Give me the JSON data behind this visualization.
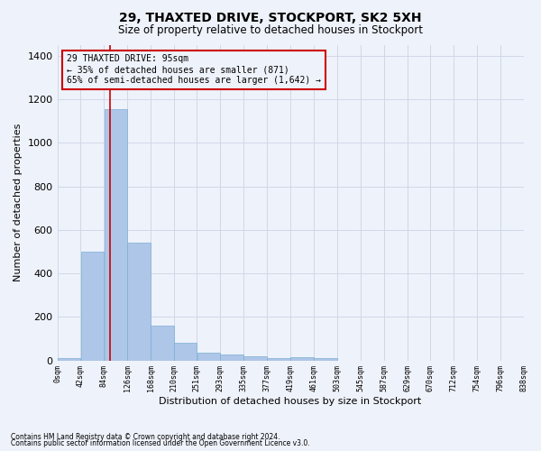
{
  "title1": "29, THAXTED DRIVE, STOCKPORT, SK2 5XH",
  "title2": "Size of property relative to detached houses in Stockport",
  "xlabel": "Distribution of detached houses by size in Stockport",
  "ylabel": "Number of detached properties",
  "footer1": "Contains HM Land Registry data © Crown copyright and database right 2024.",
  "footer2": "Contains public sector information licensed under the Open Government Licence v3.0.",
  "annotation_title": "29 THAXTED DRIVE: 95sqm",
  "annotation_line2": "← 35% of detached houses are smaller (871)",
  "annotation_line3": "65% of semi-detached houses are larger (1,642) →",
  "property_size": 95,
  "bin_edges": [
    0,
    42,
    84,
    126,
    168,
    210,
    251,
    293,
    335,
    377,
    419,
    461,
    503,
    545,
    587,
    629,
    670,
    712,
    754,
    796,
    838
  ],
  "bar_heights": [
    10,
    500,
    1155,
    540,
    160,
    80,
    35,
    28,
    20,
    10,
    15,
    10,
    0,
    0,
    0,
    0,
    0,
    0,
    0,
    0
  ],
  "bar_color": "#aec6e8",
  "bar_edge_color": "#7aafd4",
  "vline_color": "#cc0000",
  "grid_color": "#d0d8e8",
  "background_color": "#eef2fa",
  "annotation_box_color": "#cc0000",
  "ylim": [
    0,
    1450
  ],
  "yticks": [
    0,
    200,
    400,
    600,
    800,
    1000,
    1200,
    1400
  ]
}
